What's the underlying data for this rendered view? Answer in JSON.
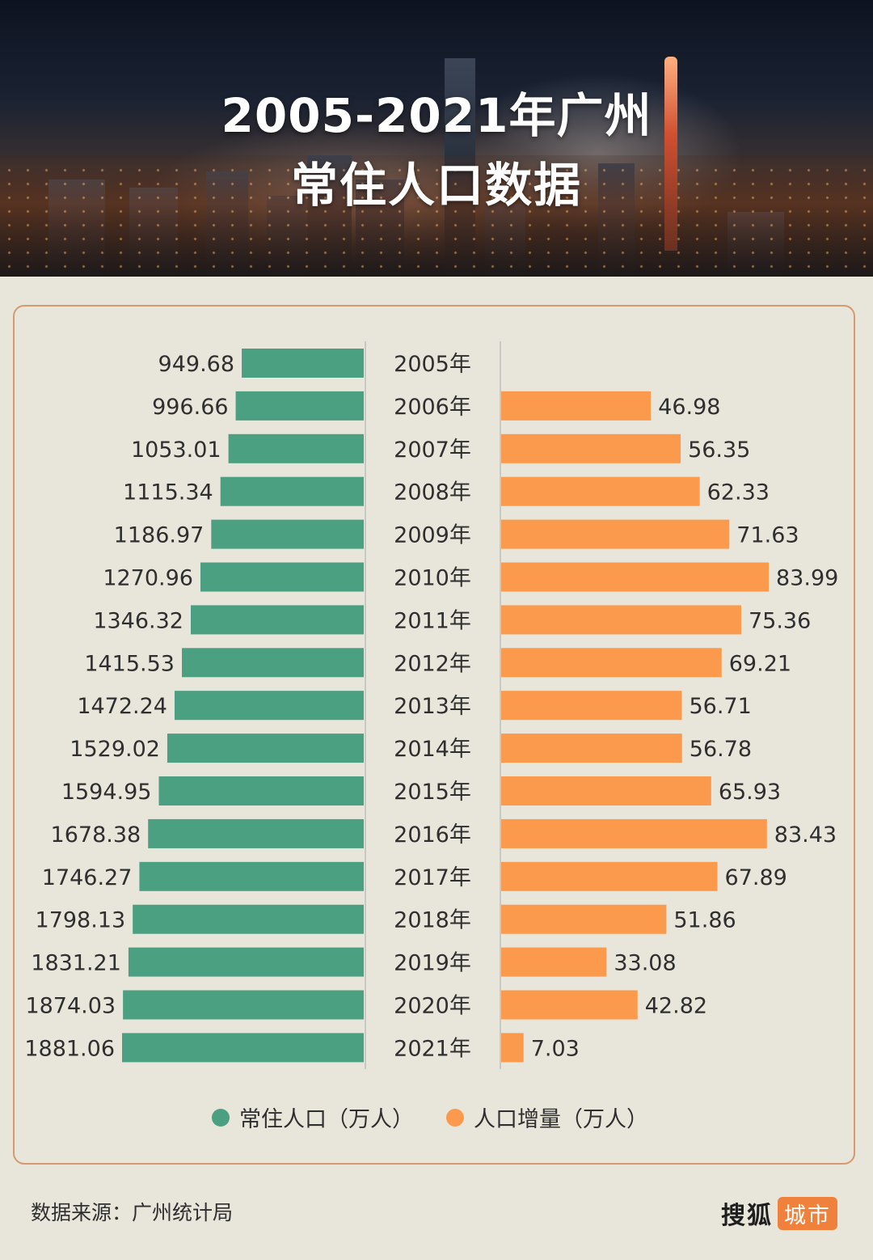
{
  "header": {
    "title_line1": "2005-2021年广州",
    "title_line2": "常住人口数据"
  },
  "chart_data": {
    "type": "bar",
    "categories": [
      "2005年",
      "2006年",
      "2007年",
      "2008年",
      "2009年",
      "2010年",
      "2011年",
      "2012年",
      "2013年",
      "2014年",
      "2015年",
      "2016年",
      "2017年",
      "2018年",
      "2019年",
      "2020年",
      "2021年"
    ],
    "series": [
      {
        "name": "常住人口（万人）",
        "color": "#4aa080",
        "values": [
          949.68,
          996.66,
          1053.01,
          1115.34,
          1186.97,
          1270.96,
          1346.32,
          1415.53,
          1472.24,
          1529.02,
          1594.95,
          1678.38,
          1746.27,
          1798.13,
          1831.21,
          1874.03,
          1881.06
        ],
        "labels": [
          "949.68",
          "996.66",
          "1053.01",
          "1115.34",
          "1186.97",
          "1270.96",
          "1346.32",
          "1415.53",
          "1472.24",
          "1529.02",
          "1594.95",
          "1678.38",
          "1746.27",
          "1798.13",
          "1831.21",
          "1874.03",
          "1881.06"
        ]
      },
      {
        "name": "人口增量（万人）",
        "color": "#fb9a4c",
        "values": [
          null,
          46.98,
          56.35,
          62.33,
          71.63,
          83.99,
          75.36,
          69.21,
          56.71,
          56.78,
          65.93,
          83.43,
          67.89,
          51.86,
          33.08,
          42.82,
          7.03
        ],
        "labels": [
          "",
          "46.98",
          "56.35",
          "62.33",
          "71.63",
          "83.99",
          "75.36",
          "69.21",
          "56.71",
          "56.78",
          "65.93",
          "83.43",
          "67.89",
          "51.86",
          "33.08",
          "42.82",
          "7.03"
        ]
      }
    ],
    "legend_position": "bottom",
    "grid": false
  },
  "footer": {
    "source": "数据来源：广州统计局",
    "brand_name": "搜狐",
    "brand_tag": "城市"
  }
}
